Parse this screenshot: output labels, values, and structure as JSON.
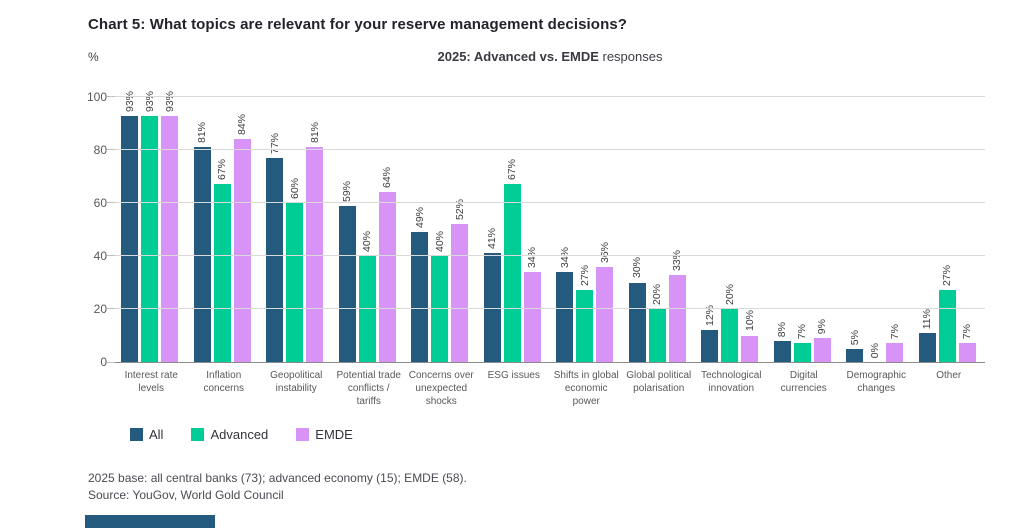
{
  "title": "Chart 5: What topics are relevant for your reserve management decisions?",
  "y_axis_unit": "%",
  "subtitle": {
    "emphasis": "2025: Advanced vs. EMDE",
    "rest": " responses"
  },
  "chart_data": {
    "type": "bar",
    "title": "2025: Advanced vs. EMDE responses",
    "xlabel": "",
    "ylabel": "%",
    "ylim": [
      0,
      100
    ],
    "yticks": [
      0,
      20,
      40,
      60,
      80,
      100
    ],
    "grid": true,
    "legend_position": "bottom-left",
    "value_label_suffix": "%",
    "categories": [
      "Interest rate\nlevels",
      "Inflation\nconcerns",
      "Geopolitical\ninstability",
      "Potential trade\nconflicts /\ntariffs",
      "Concerns over\nunexpected\nshocks",
      "ESG issues",
      "Shifts in global\neconomic\npower",
      "Global political\npolarisation",
      "Technological\ninnovation",
      "Digital\ncurrencies",
      "Demographic\nchanges",
      "Other"
    ],
    "series": [
      {
        "name": "All",
        "color": "#255a7f",
        "values": [
          93,
          81,
          77,
          59,
          49,
          41,
          34,
          30,
          12,
          8,
          5,
          11
        ]
      },
      {
        "name": "Advanced",
        "color": "#00cc96",
        "values": [
          93,
          67,
          60,
          40,
          40,
          67,
          27,
          20,
          20,
          7,
          0,
          27
        ]
      },
      {
        "name": "EMDE",
        "color": "#d893f7",
        "values": [
          93,
          84,
          81,
          64,
          52,
          34,
          36,
          33,
          10,
          9,
          7,
          7
        ]
      }
    ]
  },
  "footer": {
    "base_note": "2025 base: all central banks (73); advanced economy (15); EMDE (58).",
    "source": "Source: YouGov, World Gold Council"
  },
  "colors": {
    "all": "#255a7f",
    "advanced": "#00cc96",
    "emde": "#d893f7",
    "gridline": "#d9d9d9",
    "axis_baseline": "#8c8c8c",
    "accent_bar": "#255a7f"
  }
}
